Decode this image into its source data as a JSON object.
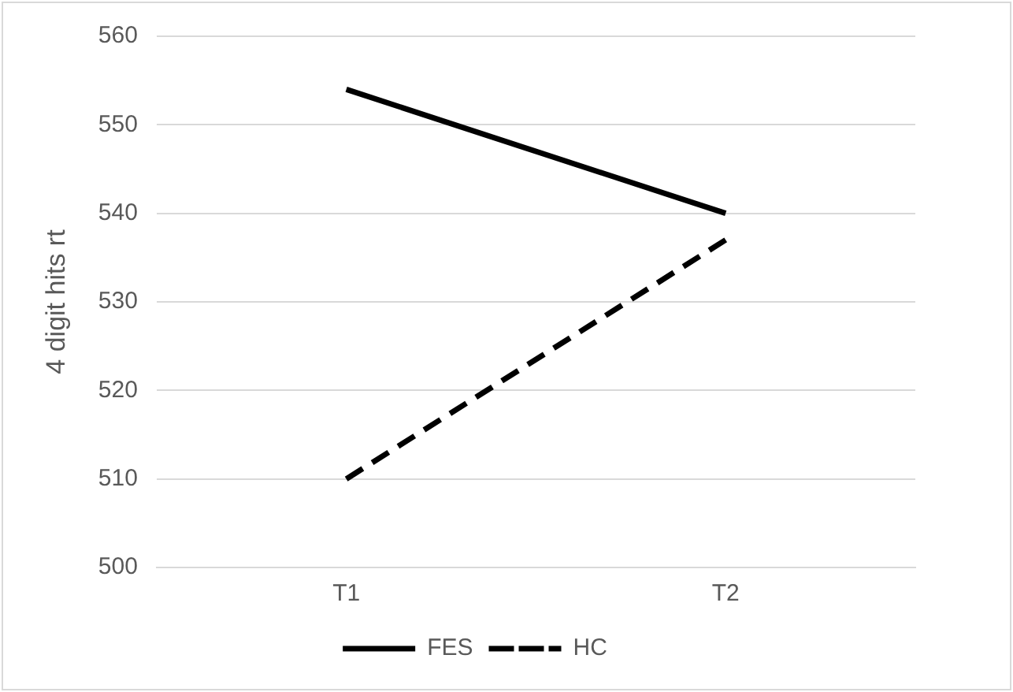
{
  "chart_data": {
    "type": "line",
    "ylabel": "4 digit hits rt",
    "categories": [
      "T1",
      "T2"
    ],
    "series": [
      {
        "name": "FES",
        "color": "#000000",
        "values": [
          554,
          540
        ],
        "line_style": "solid"
      },
      {
        "name": "HC",
        "color": "#000000",
        "values": [
          510,
          537
        ],
        "line_style": "dashed"
      }
    ],
    "ylim": [
      500,
      560
    ],
    "yticks": [
      500,
      510,
      520,
      530,
      540,
      550,
      560
    ],
    "grid": "y",
    "legend": "bottom",
    "marker": "none"
  }
}
